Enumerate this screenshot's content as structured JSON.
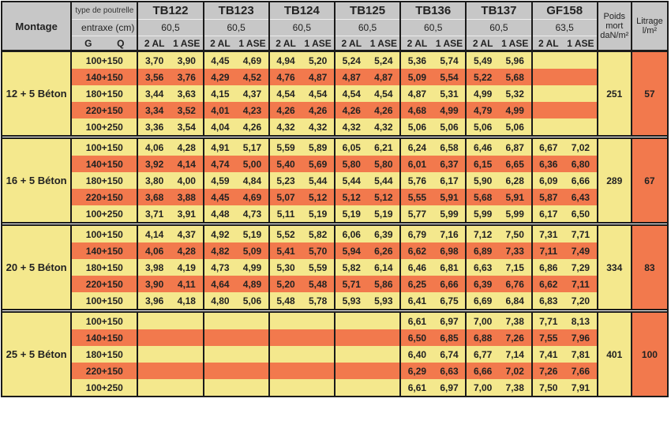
{
  "table": {
    "corner_label": "Montage",
    "header": {
      "type_label": "type de poutrelle",
      "entraxe_label": "entraxe (cm)",
      "g_label": "G",
      "q_label": "Q",
      "al_label": "2 AL",
      "ase_label": "1 ASE",
      "poids_lines": [
        "Poids",
        "mort",
        "daN/m²"
      ],
      "litrage_lines": [
        "Litrage",
        "l/m²"
      ],
      "beams": [
        {
          "name": "TB122",
          "entraxe": "60,5"
        },
        {
          "name": "TB123",
          "entraxe": "60,5"
        },
        {
          "name": "TB124",
          "entraxe": "60,5"
        },
        {
          "name": "TB125",
          "entraxe": "60,5"
        },
        {
          "name": "TB136",
          "entraxe": "60,5"
        },
        {
          "name": "TB137",
          "entraxe": "60,5"
        },
        {
          "name": "GF158",
          "entraxe": "63,5"
        }
      ]
    },
    "colors": {
      "yellow": "#f4e88d",
      "orange": "#f2794d",
      "header_gray": "#c7c7c7",
      "border": "#1b1b1b"
    },
    "groups": [
      {
        "montage": "12 + 5 Béton",
        "poids_mort": "251",
        "litrage": "57",
        "rows": [
          {
            "label": "100+150",
            "values": [
              "3,70",
              "3,90",
              "4,45",
              "4,69",
              "4,94",
              "5,20",
              "5,24",
              "5,24",
              "5,36",
              "5,74",
              "5,49",
              "5,96",
              "",
              ""
            ]
          },
          {
            "label": "140+150",
            "values": [
              "3,56",
              "3,76",
              "4,29",
              "4,52",
              "4,76",
              "4,87",
              "4,87",
              "4,87",
              "5,09",
              "5,54",
              "5,22",
              "5,68",
              "",
              ""
            ]
          },
          {
            "label": "180+150",
            "values": [
              "3,44",
              "3,63",
              "4,15",
              "4,37",
              "4,54",
              "4,54",
              "4,54",
              "4,54",
              "4,87",
              "5,31",
              "4,99",
              "5,32",
              "",
              ""
            ]
          },
          {
            "label": "220+150",
            "values": [
              "3,34",
              "3,52",
              "4,01",
              "4,23",
              "4,26",
              "4,26",
              "4,26",
              "4,26",
              "4,68",
              "4,99",
              "4,79",
              "4,99",
              "",
              ""
            ]
          },
          {
            "label": "100+250",
            "values": [
              "3,36",
              "3,54",
              "4,04",
              "4,26",
              "4,32",
              "4,32",
              "4,32",
              "4,32",
              "5,06",
              "5,06",
              "5,06",
              "5,06",
              "",
              ""
            ]
          }
        ]
      },
      {
        "montage": "16 + 5 Béton",
        "poids_mort": "289",
        "litrage": "67",
        "rows": [
          {
            "label": "100+150",
            "values": [
              "4,06",
              "4,28",
              "4,91",
              "5,17",
              "5,59",
              "5,89",
              "6,05",
              "6,21",
              "6,24",
              "6,58",
              "6,46",
              "6,87",
              "6,67",
              "7,02"
            ]
          },
          {
            "label": "140+150",
            "values": [
              "3,92",
              "4,14",
              "4,74",
              "5,00",
              "5,40",
              "5,69",
              "5,80",
              "5,80",
              "6,01",
              "6,37",
              "6,15",
              "6,65",
              "6,36",
              "6,80"
            ]
          },
          {
            "label": "180+150",
            "values": [
              "3,80",
              "4,00",
              "4,59",
              "4,84",
              "5,23",
              "5,44",
              "5,44",
              "5,44",
              "5,76",
              "6,17",
              "5,90",
              "6,28",
              "6,09",
              "6,66"
            ]
          },
          {
            "label": "220+150",
            "values": [
              "3,68",
              "3,88",
              "4,45",
              "4,69",
              "5,07",
              "5,12",
              "5,12",
              "5,12",
              "5,55",
              "5,91",
              "5,68",
              "5,91",
              "5,87",
              "6,43"
            ]
          },
          {
            "label": "100+250",
            "values": [
              "3,71",
              "3,91",
              "4,48",
              "4,73",
              "5,11",
              "5,19",
              "5,19",
              "5,19",
              "5,77",
              "5,99",
              "5,99",
              "5,99",
              "6,17",
              "6,50"
            ]
          }
        ]
      },
      {
        "montage": "20 + 5 Béton",
        "poids_mort": "334",
        "litrage": "83",
        "rows": [
          {
            "label": "100+150",
            "values": [
              "4,14",
              "4,37",
              "4,92",
              "5,19",
              "5,52",
              "5,82",
              "6,06",
              "6,39",
              "6,79",
              "7,16",
              "7,12",
              "7,50",
              "7,31",
              "7,71"
            ]
          },
          {
            "label": "140+150",
            "values": [
              "4,06",
              "4,28",
              "4,82",
              "5,09",
              "5,41",
              "5,70",
              "5,94",
              "6,26",
              "6,62",
              "6,98",
              "6,89",
              "7,33",
              "7,11",
              "7,49"
            ]
          },
          {
            "label": "180+150",
            "values": [
              "3,98",
              "4,19",
              "4,73",
              "4,99",
              "5,30",
              "5,59",
              "5,82",
              "6,14",
              "6,46",
              "6,81",
              "6,63",
              "7,15",
              "6,86",
              "7,29"
            ]
          },
          {
            "label": "220+150",
            "values": [
              "3,90",
              "4,11",
              "4,64",
              "4,89",
              "5,20",
              "5,48",
              "5,71",
              "5,86",
              "6,25",
              "6,66",
              "6,39",
              "6,76",
              "6,62",
              "7,11"
            ]
          },
          {
            "label": "100+150",
            "values": [
              "3,96",
              "4,18",
              "4,80",
              "5,06",
              "5,48",
              "5,78",
              "5,93",
              "5,93",
              "6,41",
              "6,75",
              "6,69",
              "6,84",
              "6,83",
              "7,20"
            ]
          }
        ]
      },
      {
        "montage": "25 + 5 Béton",
        "poids_mort": "401",
        "litrage": "100",
        "rows": [
          {
            "label": "100+150",
            "values": [
              "",
              "",
              "",
              "",
              "",
              "",
              "",
              "",
              "6,61",
              "6,97",
              "7,00",
              "7,38",
              "7,71",
              "8,13"
            ]
          },
          {
            "label": "140+150",
            "values": [
              "",
              "",
              "",
              "",
              "",
              "",
              "",
              "",
              "6,50",
              "6,85",
              "6,88",
              "7,26",
              "7,55",
              "7,96"
            ]
          },
          {
            "label": "180+150",
            "values": [
              "",
              "",
              "",
              "",
              "",
              "",
              "",
              "",
              "6,40",
              "6,74",
              "6,77",
              "7,14",
              "7,41",
              "7,81"
            ]
          },
          {
            "label": "220+150",
            "values": [
              "",
              "",
              "",
              "",
              "",
              "",
              "",
              "",
              "6,29",
              "6,63",
              "6,66",
              "7,02",
              "7,26",
              "7,66"
            ]
          },
          {
            "label": "100+250",
            "values": [
              "",
              "",
              "",
              "",
              "",
              "",
              "",
              "",
              "6,61",
              "6,97",
              "7,00",
              "7,38",
              "7,50",
              "7,91"
            ]
          }
        ]
      }
    ]
  }
}
